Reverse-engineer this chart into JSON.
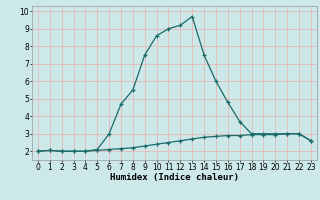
{
  "xlabel": "Humidex (Indice chaleur)",
  "background_color": "#cce8e8",
  "line_color": "#1a6b6b",
  "xlim": [
    -0.5,
    23.5
  ],
  "ylim": [
    1.5,
    10.3
  ],
  "xticks": [
    0,
    1,
    2,
    3,
    4,
    5,
    6,
    7,
    8,
    9,
    10,
    11,
    12,
    13,
    14,
    15,
    16,
    17,
    18,
    19,
    20,
    21,
    22,
    23
  ],
  "yticks": [
    2,
    3,
    4,
    5,
    6,
    7,
    8,
    9,
    10
  ],
  "curve1_x": [
    0,
    1,
    2,
    3,
    4,
    5,
    6,
    7,
    8,
    9,
    10,
    11,
    12,
    13,
    14,
    15,
    16,
    17,
    18,
    19,
    20,
    21,
    22,
    23
  ],
  "curve1_y": [
    2.0,
    2.05,
    2.0,
    2.0,
    2.0,
    2.05,
    2.1,
    2.15,
    2.2,
    2.3,
    2.4,
    2.5,
    2.6,
    2.7,
    2.8,
    2.85,
    2.9,
    2.9,
    2.95,
    2.95,
    2.95,
    3.0,
    3.0,
    2.6
  ],
  "curve2_x": [
    0,
    1,
    2,
    3,
    4,
    5,
    6,
    7,
    8,
    9,
    10,
    11,
    12,
    13,
    14,
    15,
    16,
    17,
    18,
    19,
    20,
    21,
    22,
    23
  ],
  "curve2_y": [
    2.0,
    2.05,
    2.0,
    2.0,
    2.0,
    2.1,
    3.0,
    4.7,
    5.5,
    7.5,
    8.6,
    9.0,
    9.2,
    9.7,
    7.5,
    6.0,
    4.8,
    3.7,
    3.0,
    3.0,
    3.0,
    3.0,
    3.0,
    2.6
  ],
  "grid_color": "#e8b8b8",
  "title_fontsize": 7,
  "axis_fontsize": 6.5,
  "tick_fontsize": 5.5,
  "linewidth": 0.9,
  "markersize": 2.5
}
